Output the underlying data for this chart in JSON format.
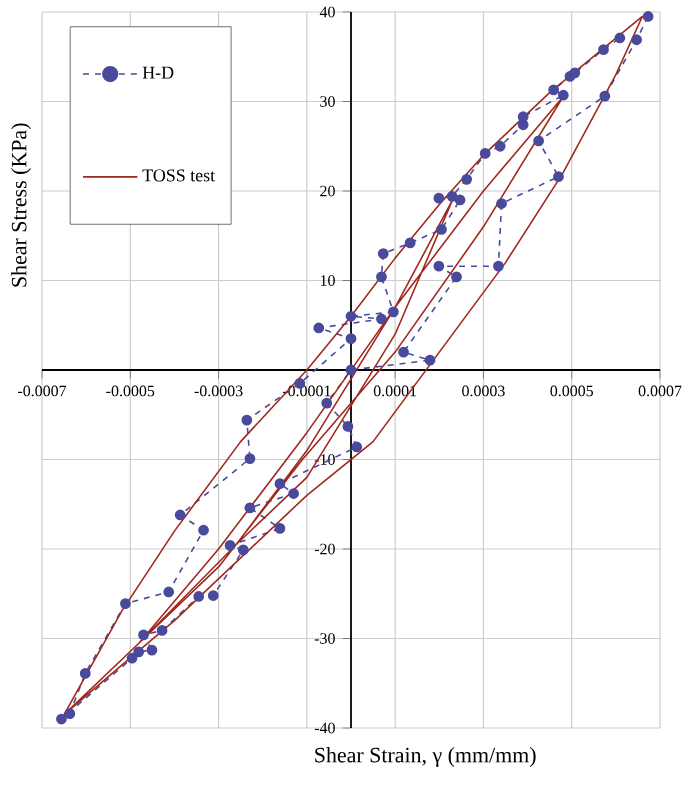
{
  "chart_data": {
    "type": "line",
    "xlabel": "Shear Strain, γ  (mm/mm)",
    "ylabel": "Shear Stress (KPa)",
    "xlim": [
      -0.0007,
      0.0007
    ],
    "ylim": [
      -40,
      40
    ],
    "xticks": [
      -0.0007,
      -0.0005,
      -0.0003,
      -0.0001,
      0.0001,
      0.0003,
      0.0005,
      0.0007
    ],
    "yticks": [
      -40,
      -30,
      -20,
      -10,
      10,
      20,
      30,
      40
    ],
    "grid": true,
    "legend": "top left",
    "series": [
      {
        "name": "H-D",
        "color": "#4a4a9c",
        "marker": "circle",
        "line_style": "dashed",
        "x": [
          0.000673,
          0.000647,
          0.000575,
          0.000425,
          0.00047,
          0.000341,
          0.000334,
          0.000199,
          0.000239,
          0.000119,
          0.000179,
          0,
          -5.5e-05,
          -7e-06,
          1.3e-05,
          -0.000161,
          -0.00013,
          -0.000229,
          -0.000161,
          -0.000274,
          -0.000244,
          -0.000312,
          -0.000345,
          -0.000428,
          -0.00047,
          -0.000451,
          -0.000481,
          -0.000496,
          -0.000656,
          -0.000637,
          -0.000602,
          -0.000511,
          -0.000413,
          -0.000334,
          -0.000387,
          -0.000229,
          -0.000236,
          -0.000116,
          0,
          -7.3e-05,
          6.9e-05,
          0,
          9.6e-05,
          6.9e-05,
          7.3e-05,
          0.000134,
          0.000205,
          0.000247,
          0.000199,
          0.000229,
          0.000262,
          0.000304,
          0.000338,
          0.00039,
          0.00039,
          0.000481,
          0.000459,
          0.000496,
          0.000507,
          0.000572,
          0.000609
        ],
        "values": [
          39.5,
          36.9,
          30.6,
          25.6,
          21.6,
          18.6,
          11.6,
          11.6,
          10.4,
          2.0,
          1.1,
          0,
          -3.7,
          -6.3,
          -8.6,
          -12.7,
          -13.8,
          -15.4,
          -17.7,
          -19.6,
          -20.1,
          -25.2,
          -25.3,
          -29.1,
          -29.6,
          -31.3,
          -31.5,
          -32.2,
          -39.0,
          -38.4,
          -33.9,
          -26.1,
          -24.8,
          -17.9,
          -16.2,
          -9.9,
          -5.6,
          -1.5,
          3.5,
          4.7,
          5.7,
          6.0,
          6.5,
          10.4,
          13.0,
          14.2,
          15.7,
          19.0,
          19.2,
          19.4,
          21.3,
          24.2,
          25.0,
          27.4,
          28.3,
          30.7,
          31.3,
          32.8,
          33.2,
          35.8,
          37.1
        ]
      },
      {
        "name": "TOSS test",
        "color": "#a0281e",
        "marker": "none",
        "line_style": "solid",
        "x": [
          -0.00065,
          -0.00052,
          -0.0004,
          -0.00025,
          -0.0001,
          0,
          0.0001,
          0.0002,
          0.0003,
          0.00045,
          0.00066,
          0.0006,
          0.00048,
          0.00035,
          0.0002,
          5e-05,
          -0.0001,
          -0.00025,
          -0.0004,
          -0.00052,
          -0.00065,
          -0.00048,
          -0.0003,
          -0.0001,
          0.0001,
          0.0003,
          0.00048,
          0.0003,
          0.0001,
          -0.00011,
          -0.0003,
          -0.00048,
          -0.00026,
          -0.0001,
          0.0001,
          0.00023,
          0.0001,
          -0.0001,
          -0.00026
        ],
        "values": [
          -38.5,
          -27,
          -18,
          -8,
          0,
          6,
          12.5,
          18.5,
          24,
          31,
          39.5,
          33,
          22,
          12,
          2,
          -8,
          -14,
          -21,
          -28,
          -33,
          -38.5,
          -30.5,
          -20,
          -7,
          7,
          20,
          30.5,
          16,
          2,
          -10,
          -22,
          -30.5,
          -19.5,
          -9,
          7,
          19,
          4,
          -12,
          -19.5
        ]
      }
    ]
  }
}
